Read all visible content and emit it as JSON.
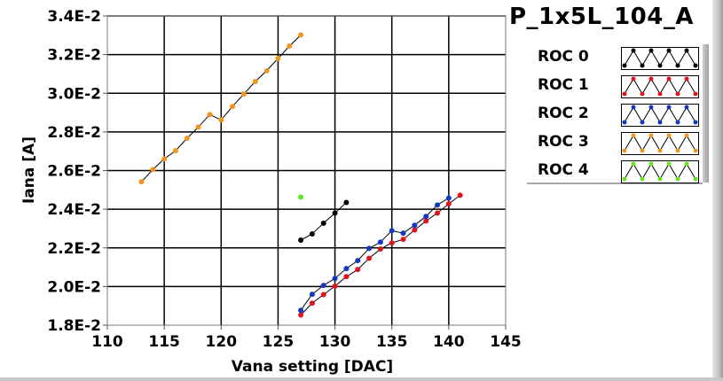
{
  "chart_data": {
    "type": "line",
    "title": "P_1x5L_104_A",
    "xlabel": "Vana setting [DAC]",
    "ylabel": "Iana [A]",
    "xlim": [
      110,
      145
    ],
    "ylim": [
      0.018,
      0.034
    ],
    "grid": true,
    "x_ticks": [
      110,
      115,
      120,
      125,
      130,
      135,
      140,
      145
    ],
    "x_tick_labels": [
      "110",
      "115",
      "120",
      "125",
      "130",
      "135",
      "140",
      "145"
    ],
    "y_ticks": [
      0.018,
      0.02,
      0.022,
      0.024,
      0.026,
      0.028,
      0.03,
      0.032,
      0.034
    ],
    "y_tick_labels": [
      "1.8E-2",
      "2.0E-2",
      "2.2E-2",
      "2.4E-2",
      "2.6E-2",
      "2.8E-2",
      "3.0E-2",
      "3.2E-2",
      "3.4E-2"
    ],
    "legend_position": "right",
    "series": [
      {
        "name": "ROC 0",
        "color": "#000000",
        "x": [
          127,
          128,
          129,
          130,
          131
        ],
        "y": [
          0.0224,
          0.02272,
          0.02328,
          0.0238,
          0.02435
        ]
      },
      {
        "name": "ROC 1",
        "color": "#e0141e",
        "x": [
          127,
          128,
          129,
          130,
          131,
          132,
          133,
          134,
          135,
          136,
          137,
          138,
          139,
          140,
          141
        ],
        "y": [
          0.01853,
          0.01914,
          0.01958,
          0.02002,
          0.02051,
          0.02088,
          0.02146,
          0.02194,
          0.02226,
          0.02244,
          0.02293,
          0.02339,
          0.0238,
          0.02428,
          0.02472
        ]
      },
      {
        "name": "ROC 2",
        "color": "#1438c0",
        "x": [
          127,
          128,
          129,
          130,
          131,
          132,
          133,
          134,
          135,
          136,
          137,
          138,
          139,
          140
        ],
        "y": [
          0.01877,
          0.0196,
          0.02006,
          0.02042,
          0.02093,
          0.02134,
          0.02197,
          0.0223,
          0.02289,
          0.02276,
          0.02317,
          0.02363,
          0.02422,
          0.02458
        ]
      },
      {
        "name": "ROC 3",
        "color": "#f0961e",
        "x": [
          113,
          114,
          115,
          116,
          117,
          118,
          119,
          120,
          121,
          122,
          123,
          124,
          125,
          126,
          127
        ],
        "y": [
          0.02542,
          0.02605,
          0.0266,
          0.02703,
          0.02767,
          0.02825,
          0.0289,
          0.02862,
          0.02932,
          0.02996,
          0.03061,
          0.03116,
          0.0318,
          0.03244,
          0.03302
        ]
      },
      {
        "name": "ROC 4",
        "color": "#64e61e",
        "x": [
          127
        ],
        "y": [
          0.02463
        ]
      }
    ]
  },
  "legend": {
    "items": [
      {
        "label": "ROC 0",
        "color": "#000000"
      },
      {
        "label": "ROC 1",
        "color": "#e0141e"
      },
      {
        "label": "ROC 2",
        "color": "#1438c0"
      },
      {
        "label": "ROC 3",
        "color": "#f0961e"
      },
      {
        "label": "ROC 4",
        "color": "#64e61e"
      }
    ]
  }
}
